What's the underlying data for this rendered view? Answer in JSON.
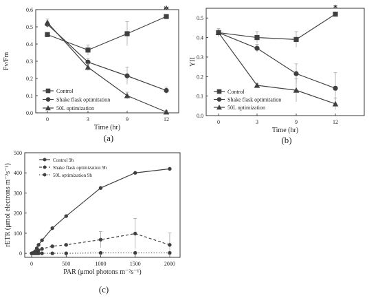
{
  "chart_data": [
    {
      "panel_label": "(a)",
      "type": "line",
      "xlabel": "Time (hr)",
      "ylabel": "Fv/Fm",
      "x": [
        0,
        3,
        9,
        12
      ],
      "xticks": [
        "0",
        "3",
        "9",
        "12"
      ],
      "ylim": [
        0.0,
        0.6
      ],
      "yticks": [
        "0.0",
        "0.1",
        "0.2",
        "0.3",
        "0.4",
        "0.5",
        "0.6"
      ],
      "legend_position": "bottom-left",
      "annotation": "*",
      "annotation_x": 12,
      "series": [
        {
          "name": "Control",
          "marker": "square",
          "values": [
            0.455,
            0.365,
            0.46,
            0.56
          ],
          "errors": [
            0.01,
            0.03,
            0.07,
            0.01
          ]
        },
        {
          "name": "Shake flask optimitation",
          "marker": "circle",
          "values": [
            0.515,
            0.295,
            0.215,
            0.13
          ],
          "errors": [
            0.02,
            0.02,
            0.05,
            0.02
          ]
        },
        {
          "name": "50L optimization",
          "marker": "triangle",
          "values": [
            0.525,
            0.265,
            0.1,
            0.005
          ],
          "errors": [
            0.02,
            0.02,
            0.02,
            0.01
          ]
        }
      ]
    },
    {
      "panel_label": "(b)",
      "type": "line",
      "xlabel": "Time (hr)",
      "ylabel": "YII",
      "x": [
        0,
        3,
        9,
        12
      ],
      "xticks": [
        "0",
        "3",
        "9",
        "12"
      ],
      "ylim": [
        0.0,
        0.55
      ],
      "yticks": [
        "0.0",
        "0.1",
        "0.2",
        "0.3",
        "0.4",
        "0.5"
      ],
      "legend_position": "bottom-left",
      "annotation": "*",
      "annotation_x": 12,
      "series": [
        {
          "name": "Control",
          "marker": "square",
          "values": [
            0.425,
            0.4,
            0.39,
            0.52
          ],
          "errors": [
            0.02,
            0.03,
            0.04,
            0.01
          ]
        },
        {
          "name": "Shake flask optimitation",
          "marker": "circle",
          "values": [
            0.425,
            0.345,
            0.215,
            0.14
          ],
          "errors": [
            0.02,
            0.02,
            0.05,
            0.08
          ]
        },
        {
          "name": "50L optimization",
          "marker": "triangle",
          "values": [
            0.425,
            0.155,
            0.13,
            0.06
          ],
          "errors": [
            0.02,
            0.01,
            0.06,
            0.03
          ]
        }
      ]
    },
    {
      "panel_label": "(c)",
      "type": "line",
      "xlabel": "PAR (μmol photons m⁻²s⁻¹)",
      "ylabel": "rETR (μmol electrons m⁻²s⁻¹)",
      "xlim": [
        -100,
        2150
      ],
      "xticks": [
        "0",
        "500",
        "1000",
        "1500",
        "2000"
      ],
      "ylim": [
        -20,
        500
      ],
      "yticks": [
        "0",
        "100",
        "200",
        "300",
        "400",
        "500"
      ],
      "legend_position": "top-left",
      "series": [
        {
          "name": "Control 9h",
          "style": "solid",
          "x": [
            0,
            25,
            50,
            75,
            100,
            150,
            300,
            500,
            1000,
            1500,
            2000
          ],
          "values": [
            0,
            2,
            10,
            25,
            42,
            65,
            125,
            185,
            325,
            400,
            420
          ],
          "errors": [
            0,
            0,
            0,
            0,
            0,
            0,
            0,
            0,
            0,
            0,
            0
          ]
        },
        {
          "name": "Shake flask optimization 9h",
          "style": "dashed",
          "x": [
            0,
            25,
            50,
            75,
            100,
            150,
            300,
            500,
            1000,
            1500,
            2000
          ],
          "values": [
            0,
            2,
            5,
            10,
            15,
            22,
            35,
            42,
            68,
            98,
            42
          ],
          "errors": [
            0,
            0,
            0,
            0,
            0,
            0,
            0,
            5,
            40,
            75,
            60
          ]
        },
        {
          "name": "50L optimization 9h",
          "style": "dotted",
          "x": [
            0,
            25,
            50,
            75,
            100,
            150,
            300,
            500,
            1000,
            1500,
            2000
          ],
          "values": [
            0,
            0,
            0,
            0,
            0,
            0,
            0,
            0,
            2,
            2,
            2
          ],
          "errors": [
            0,
            0,
            0,
            0,
            0,
            0,
            0,
            0,
            0,
            0,
            0
          ]
        }
      ]
    }
  ]
}
